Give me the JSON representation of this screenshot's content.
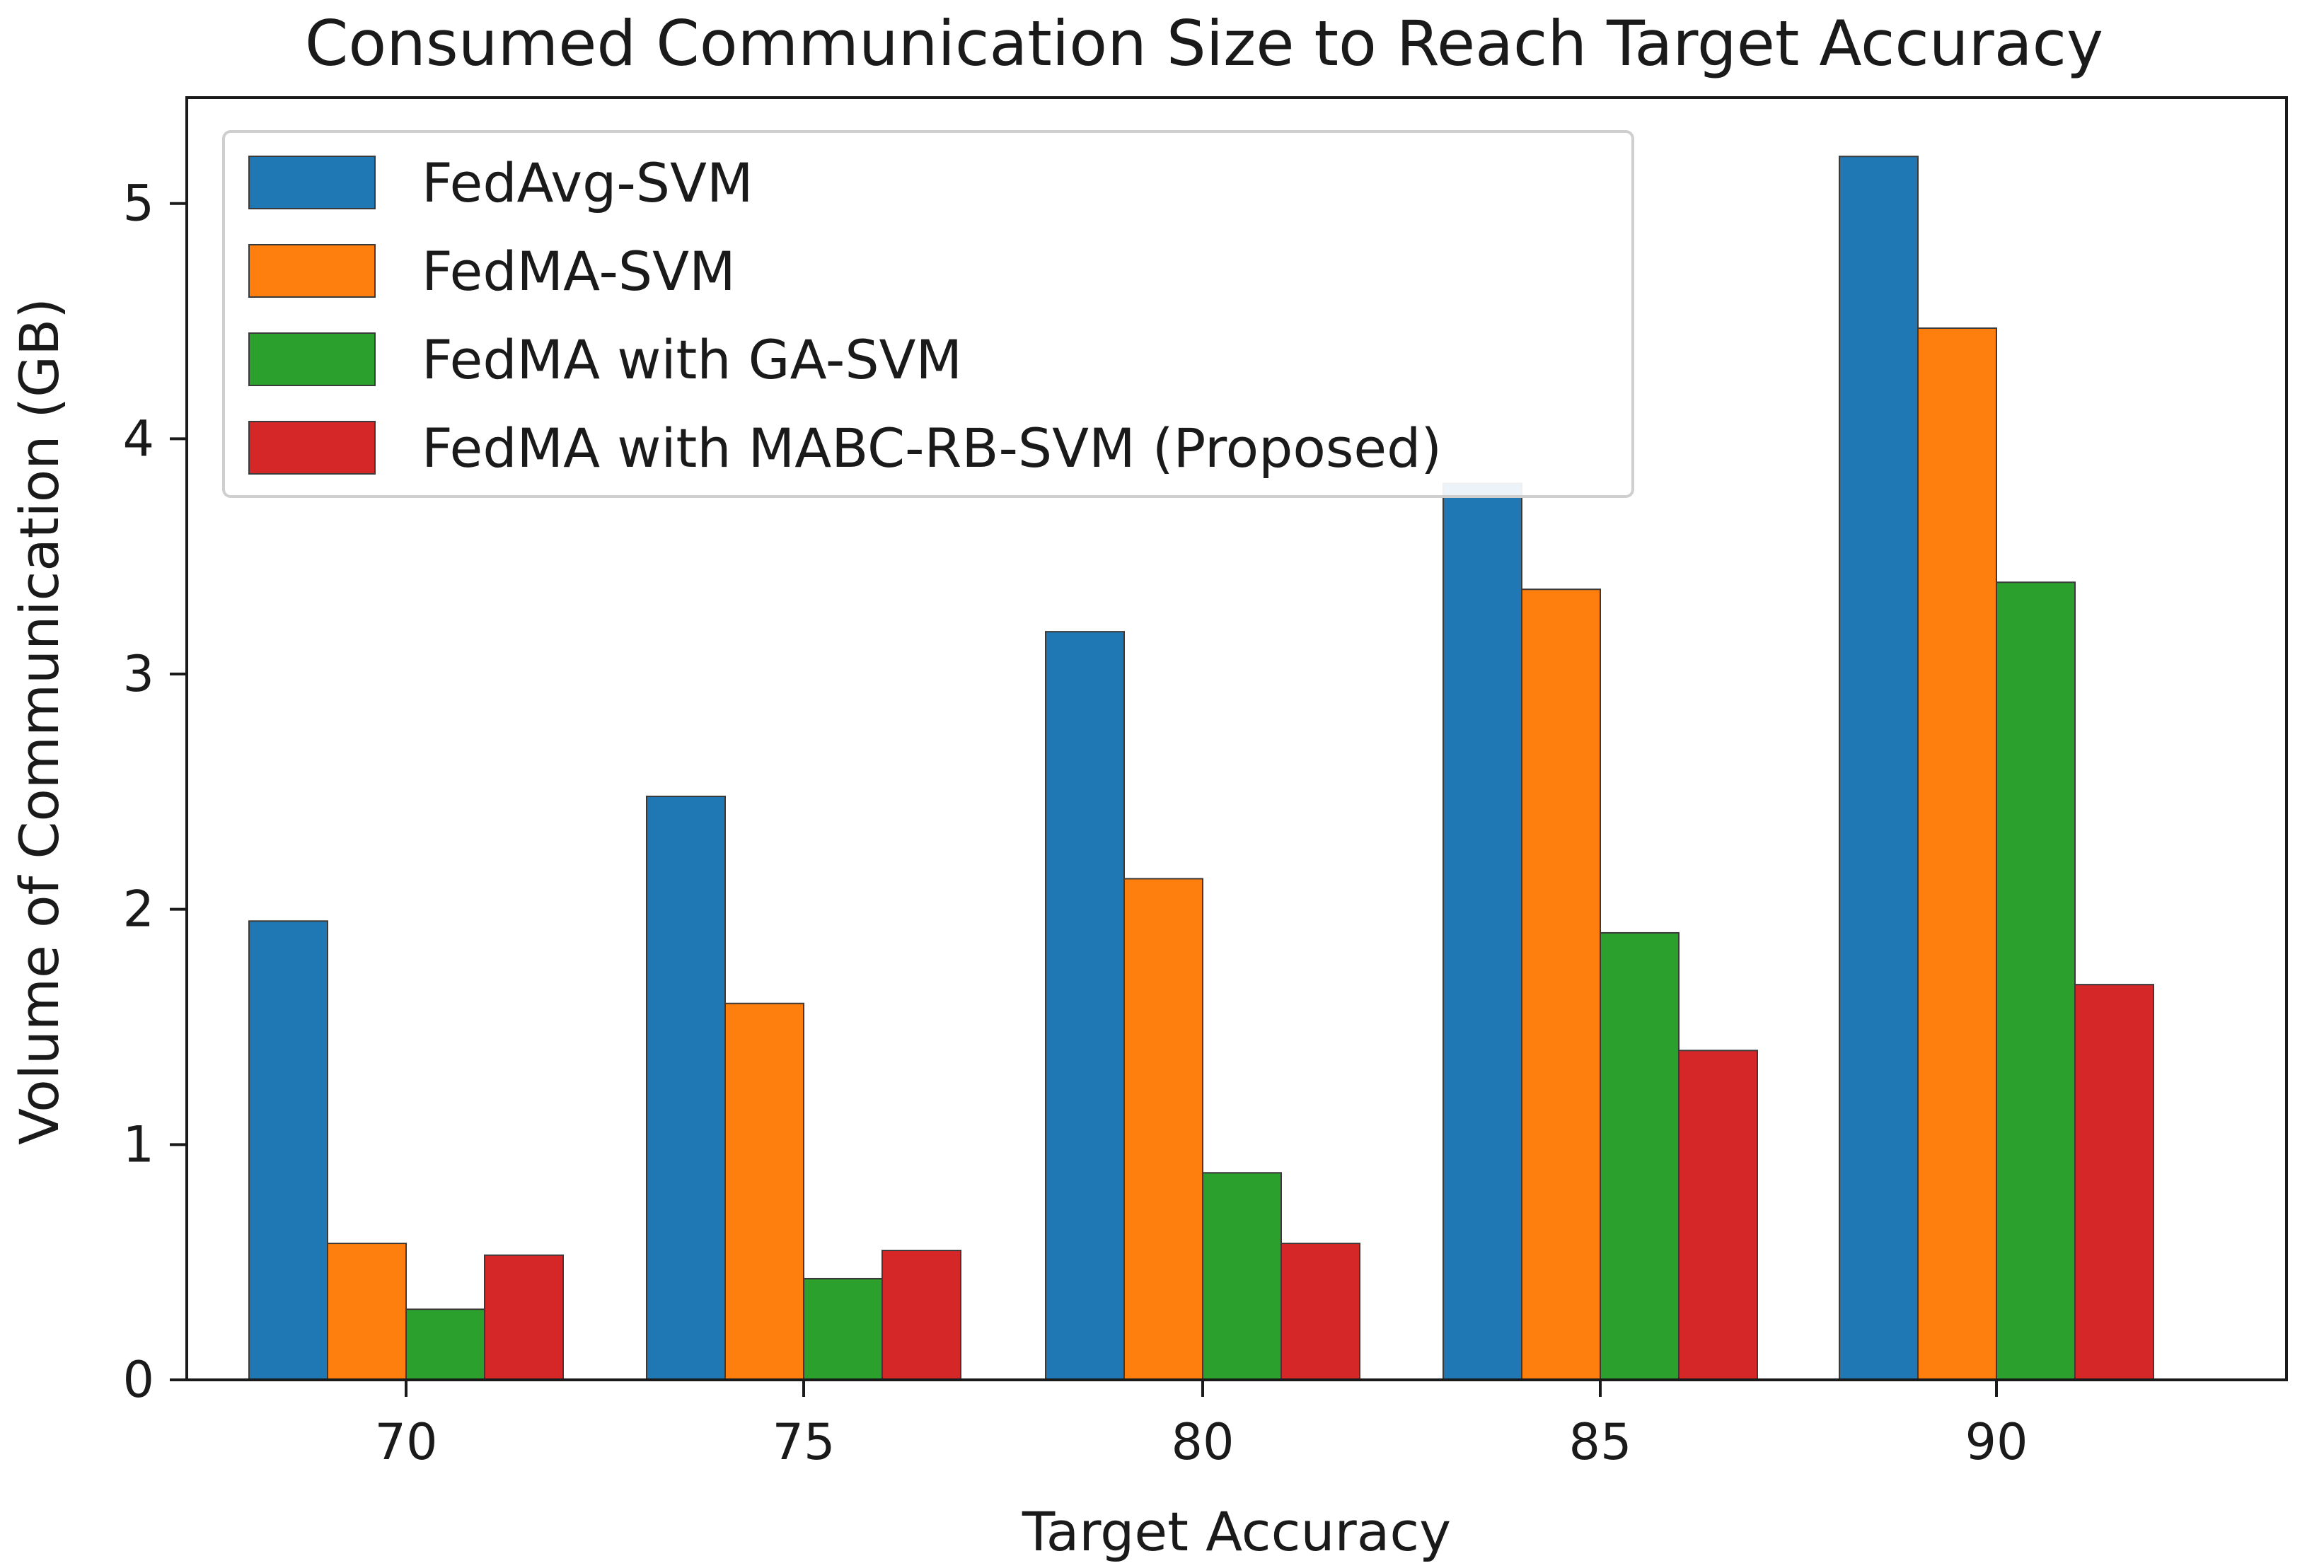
{
  "chart_data": {
    "type": "bar",
    "title": "Consumed Communication Size to Reach Target Accuracy",
    "xlabel": "Target Accuracy",
    "ylabel": "Volume of Communication (GB)",
    "categories": [
      "70",
      "75",
      "80",
      "85",
      "90"
    ],
    "ylim": [
      0,
      5.45
    ],
    "yticks": [
      "0",
      "1",
      "2",
      "3",
      "4",
      "5"
    ],
    "legend_position": "top-left",
    "grid": false,
    "series": [
      {
        "name": "FedAvg-SVM",
        "color": "#1f77b4",
        "values": [
          1.95,
          2.48,
          3.18,
          3.81,
          5.2
        ]
      },
      {
        "name": "FedMA-SVM",
        "color": "#ff7f0e",
        "values": [
          0.58,
          1.6,
          2.13,
          3.36,
          4.47
        ]
      },
      {
        "name": "FedMA with GA-SVM",
        "color": "#2ca02c",
        "values": [
          0.3,
          0.43,
          0.88,
          1.9,
          3.39
        ]
      },
      {
        "name": "FedMA with MABC-RB-SVM (Proposed)",
        "color": "#d62728",
        "values": [
          0.53,
          0.55,
          0.58,
          1.4,
          1.68
        ]
      }
    ]
  }
}
